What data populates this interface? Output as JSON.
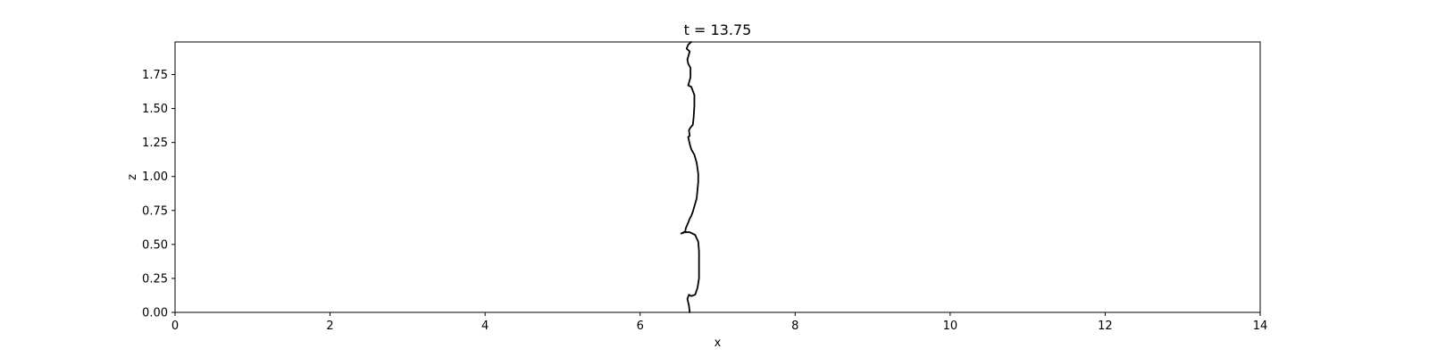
{
  "chart_data": {
    "type": "line",
    "title": "t = 13.75",
    "xlabel": "x",
    "ylabel": "z",
    "xlim": [
      0,
      14
    ],
    "ylim": [
      0,
      1.99
    ],
    "grid": false,
    "x_ticks": [
      0,
      2,
      4,
      6,
      8,
      10,
      12,
      14
    ],
    "x_tick_labels": [
      "0",
      "2",
      "4",
      "6",
      "8",
      "10",
      "12",
      "14"
    ],
    "y_ticks": [
      0.0,
      0.25,
      0.5,
      0.75,
      1.0,
      1.25,
      1.5,
      1.75
    ],
    "y_tick_labels": [
      "0.00",
      "0.25",
      "0.50",
      "0.75",
      "1.00",
      "1.25",
      "1.50",
      "1.75"
    ],
    "series": [
      {
        "color": "#000000",
        "x": [
          6.64,
          6.63,
          6.61,
          6.63,
          6.66,
          6.71,
          6.74,
          6.76,
          6.76,
          6.76,
          6.75,
          6.71,
          6.64,
          6.56,
          6.53,
          6.58,
          6.59,
          6.62,
          6.64,
          6.66,
          6.68,
          6.7,
          6.73,
          6.74,
          6.75,
          6.75,
          6.73,
          6.7,
          6.66,
          6.64,
          6.62,
          6.64,
          6.63,
          6.65,
          6.68,
          6.69,
          6.7,
          6.7,
          6.66,
          6.62,
          6.65,
          6.65,
          6.62,
          6.61,
          6.64,
          6.6,
          6.62,
          6.66
        ],
        "y": [
          0.0,
          0.05,
          0.1,
          0.13,
          0.12,
          0.13,
          0.18,
          0.25,
          0.35,
          0.45,
          0.52,
          0.57,
          0.59,
          0.59,
          0.58,
          0.59,
          0.62,
          0.66,
          0.69,
          0.71,
          0.74,
          0.78,
          0.84,
          0.9,
          0.96,
          1.02,
          1.1,
          1.16,
          1.2,
          1.24,
          1.29,
          1.3,
          1.34,
          1.36,
          1.38,
          1.43,
          1.52,
          1.6,
          1.66,
          1.67,
          1.73,
          1.8,
          1.83,
          1.86,
          1.92,
          1.94,
          1.97,
          1.99
        ]
      }
    ]
  }
}
